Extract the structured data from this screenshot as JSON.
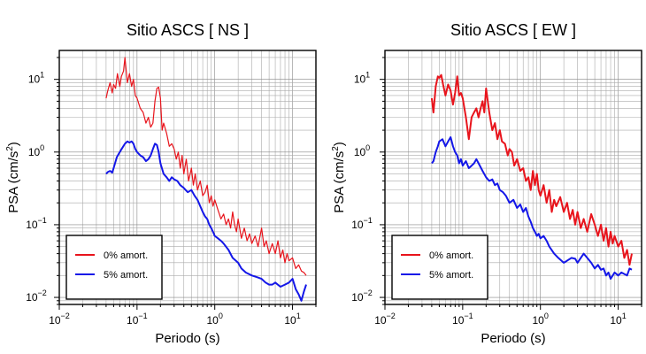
{
  "chart_data": [
    {
      "type": "line",
      "title": "Sitio ASCS [ NS ]",
      "xlabel": "Periodo (s)",
      "ylabel_main": "PSA (cm/s",
      "ylabel_sup": "2",
      "ylabel_end": ")",
      "x_scale": "log",
      "y_scale": "log",
      "xlim": [
        0.01,
        20
      ],
      "ylim": [
        0.008,
        25
      ],
      "grid": true,
      "legend_position": "bottom-left",
      "x_ticks": [
        {
          "value": 0.01,
          "base": "10",
          "exp": "−2"
        },
        {
          "value": 0.1,
          "base": "10",
          "exp": "−1"
        },
        {
          "value": 1,
          "base": "10",
          "exp": "0"
        },
        {
          "value": 10,
          "base": "10",
          "exp": "1"
        }
      ],
      "y_ticks": [
        {
          "value": 0.01,
          "base": "10",
          "exp": "−2"
        },
        {
          "value": 0.1,
          "base": "10",
          "exp": "−1"
        },
        {
          "value": 1,
          "base": "10",
          "exp": "0"
        },
        {
          "value": 10,
          "base": "10",
          "exp": "1"
        }
      ],
      "series": [
        {
          "name": "0% amort.",
          "color": "#e8141c",
          "width": 1.2,
          "x": [
            0.04,
            0.042,
            0.045,
            0.048,
            0.05,
            0.053,
            0.056,
            0.06,
            0.063,
            0.067,
            0.07,
            0.075,
            0.08,
            0.085,
            0.09,
            0.095,
            0.1,
            0.11,
            0.12,
            0.13,
            0.14,
            0.15,
            0.16,
            0.17,
            0.18,
            0.19,
            0.2,
            0.21,
            0.22,
            0.24,
            0.26,
            0.28,
            0.3,
            0.32,
            0.34,
            0.36,
            0.38,
            0.4,
            0.43,
            0.46,
            0.5,
            0.53,
            0.56,
            0.6,
            0.65,
            0.7,
            0.75,
            0.8,
            0.85,
            0.9,
            0.95,
            1.0,
            1.1,
            1.2,
            1.3,
            1.4,
            1.5,
            1.6,
            1.7,
            1.8,
            1.9,
            2.0,
            2.2,
            2.4,
            2.6,
            2.8,
            3.0,
            3.3,
            3.6,
            4.0,
            4.3,
            4.6,
            5.0,
            5.5,
            6.0,
            6.5,
            7.0,
            7.5,
            8.0,
            8.5,
            9.0,
            10.0,
            11.0,
            12.0,
            13.0,
            14.0,
            15.0
          ],
          "y": [
            5.5,
            7.0,
            9.0,
            6.5,
            8.5,
            7.5,
            12.0,
            8.0,
            11.0,
            13.0,
            20.0,
            9.0,
            12.0,
            8.0,
            10.0,
            6.0,
            5.5,
            4.0,
            3.5,
            2.5,
            3.0,
            2.2,
            2.5,
            5.0,
            7.5,
            7.8,
            5.5,
            2.0,
            2.5,
            1.8,
            1.2,
            1.3,
            1.1,
            0.8,
            1.0,
            0.6,
            0.9,
            0.5,
            0.8,
            0.4,
            0.6,
            0.35,
            0.5,
            0.3,
            0.4,
            0.25,
            0.28,
            0.35,
            0.2,
            0.25,
            0.18,
            0.22,
            0.16,
            0.12,
            0.14,
            0.1,
            0.12,
            0.09,
            0.15,
            0.1,
            0.08,
            0.12,
            0.065,
            0.09,
            0.06,
            0.075,
            0.055,
            0.07,
            0.05,
            0.09,
            0.05,
            0.06,
            0.04,
            0.055,
            0.04,
            0.06,
            0.035,
            0.045,
            0.03,
            0.04,
            0.032,
            0.035,
            0.025,
            0.028,
            0.023,
            0.022,
            0.02
          ]
        },
        {
          "name": "5% amort.",
          "color": "#1417e8",
          "width": 2.0,
          "x": [
            0.04,
            0.042,
            0.045,
            0.048,
            0.05,
            0.055,
            0.06,
            0.065,
            0.07,
            0.075,
            0.08,
            0.085,
            0.09,
            0.095,
            0.1,
            0.11,
            0.12,
            0.13,
            0.14,
            0.15,
            0.16,
            0.17,
            0.18,
            0.19,
            0.2,
            0.22,
            0.24,
            0.26,
            0.28,
            0.3,
            0.33,
            0.36,
            0.4,
            0.45,
            0.5,
            0.55,
            0.6,
            0.65,
            0.7,
            0.75,
            0.8,
            0.85,
            0.9,
            0.95,
            1.0,
            1.1,
            1.2,
            1.3,
            1.5,
            1.7,
            2.0,
            2.2,
            2.5,
            3.0,
            3.5,
            4.0,
            4.5,
            5.0,
            5.5,
            6.0,
            7.0,
            8.0,
            9.0,
            10.0,
            11.0,
            12.0,
            13.0,
            14.0,
            15.0
          ],
          "y": [
            0.5,
            0.53,
            0.55,
            0.52,
            0.6,
            0.85,
            1.0,
            1.15,
            1.3,
            1.4,
            1.35,
            1.4,
            1.3,
            1.1,
            1.0,
            0.9,
            0.85,
            0.75,
            0.8,
            0.9,
            1.1,
            1.3,
            1.25,
            1.0,
            0.7,
            0.5,
            0.45,
            0.4,
            0.45,
            0.42,
            0.4,
            0.35,
            0.32,
            0.28,
            0.3,
            0.25,
            0.22,
            0.18,
            0.15,
            0.13,
            0.12,
            0.1,
            0.09,
            0.08,
            0.07,
            0.065,
            0.06,
            0.055,
            0.045,
            0.035,
            0.03,
            0.025,
            0.022,
            0.02,
            0.019,
            0.018,
            0.016,
            0.015,
            0.015,
            0.016,
            0.014,
            0.015,
            0.016,
            0.018,
            0.013,
            0.011,
            0.009,
            0.012,
            0.015
          ]
        }
      ]
    },
    {
      "type": "line",
      "title": "Sitio ASCS [ EW ]",
      "xlabel": "Periodo (s)",
      "ylabel_main": "PSA (cm/s",
      "ylabel_sup": "2",
      "ylabel_end": ")",
      "x_scale": "log",
      "y_scale": "log",
      "xlim": [
        0.01,
        20
      ],
      "ylim": [
        0.008,
        25
      ],
      "grid": true,
      "legend_position": "bottom-left",
      "x_ticks": [
        {
          "value": 0.01,
          "base": "10",
          "exp": "−2"
        },
        {
          "value": 0.1,
          "base": "10",
          "exp": "−1"
        },
        {
          "value": 1,
          "base": "10",
          "exp": "0"
        },
        {
          "value": 10,
          "base": "10",
          "exp": "1"
        }
      ],
      "y_ticks": [
        {
          "value": 0.01,
          "base": "10",
          "exp": "−2"
        },
        {
          "value": 0.1,
          "base": "10",
          "exp": "−1"
        },
        {
          "value": 1,
          "base": "10",
          "exp": "0"
        },
        {
          "value": 10,
          "base": "10",
          "exp": "1"
        }
      ],
      "series": [
        {
          "name": "0% amort.",
          "color": "#e8141c",
          "width": 2.0,
          "x": [
            0.04,
            0.042,
            0.045,
            0.048,
            0.05,
            0.053,
            0.056,
            0.06,
            0.065,
            0.07,
            0.075,
            0.08,
            0.085,
            0.09,
            0.095,
            0.1,
            0.11,
            0.12,
            0.13,
            0.14,
            0.15,
            0.16,
            0.17,
            0.18,
            0.19,
            0.2,
            0.22,
            0.24,
            0.26,
            0.28,
            0.3,
            0.32,
            0.35,
            0.38,
            0.4,
            0.43,
            0.46,
            0.5,
            0.55,
            0.6,
            0.65,
            0.7,
            0.75,
            0.8,
            0.85,
            0.9,
            0.95,
            1.0,
            1.1,
            1.2,
            1.3,
            1.4,
            1.5,
            1.6,
            1.8,
            2.0,
            2.2,
            2.4,
            2.6,
            2.8,
            3.0,
            3.3,
            3.6,
            4.0,
            4.5,
            5.0,
            5.5,
            6.0,
            6.5,
            7.0,
            7.5,
            8.0,
            8.5,
            9.0,
            10.0,
            11.0,
            12.0,
            13.0,
            14.0,
            15.0
          ],
          "y": [
            5.5,
            3.5,
            8.0,
            11.0,
            10.5,
            11.5,
            8.5,
            6.0,
            8.5,
            7.0,
            4.5,
            6.5,
            11.0,
            6.0,
            6.5,
            5.5,
            3.0,
            1.5,
            3.0,
            3.5,
            4.0,
            3.0,
            4.0,
            5.0,
            3.5,
            7.5,
            3.5,
            2.0,
            2.5,
            1.5,
            2.0,
            1.4,
            1.3,
            0.9,
            1.1,
            1.0,
            0.65,
            0.8,
            0.55,
            0.6,
            0.4,
            0.45,
            0.3,
            0.55,
            0.35,
            0.5,
            0.3,
            0.25,
            0.35,
            0.2,
            0.3,
            0.15,
            0.22,
            0.18,
            0.24,
            0.15,
            0.2,
            0.12,
            0.16,
            0.1,
            0.15,
            0.09,
            0.12,
            0.08,
            0.14,
            0.1,
            0.07,
            0.1,
            0.06,
            0.09,
            0.05,
            0.08,
            0.055,
            0.07,
            0.05,
            0.06,
            0.035,
            0.045,
            0.028,
            0.04
          ]
        },
        {
          "name": "5% amort.",
          "color": "#1417e8",
          "width": 2.0,
          "x": [
            0.04,
            0.042,
            0.045,
            0.048,
            0.05,
            0.055,
            0.06,
            0.065,
            0.07,
            0.075,
            0.08,
            0.085,
            0.09,
            0.095,
            0.1,
            0.11,
            0.12,
            0.13,
            0.14,
            0.15,
            0.16,
            0.18,
            0.2,
            0.22,
            0.24,
            0.26,
            0.28,
            0.3,
            0.33,
            0.36,
            0.4,
            0.45,
            0.5,
            0.55,
            0.6,
            0.65,
            0.7,
            0.75,
            0.8,
            0.85,
            0.9,
            0.95,
            1.0,
            1.1,
            1.2,
            1.3,
            1.5,
            1.7,
            2.0,
            2.2,
            2.5,
            2.8,
            3.0,
            3.3,
            3.6,
            4.0,
            4.5,
            5.0,
            5.5,
            6.0,
            6.5,
            7.0,
            7.5,
            8.0,
            8.5,
            9.0,
            10.0,
            11.0,
            12.0,
            13.0,
            14.0,
            15.0
          ],
          "y": [
            0.7,
            0.75,
            1.0,
            1.2,
            1.4,
            1.5,
            1.2,
            1.4,
            1.6,
            1.2,
            1.0,
            0.9,
            0.7,
            0.8,
            0.65,
            0.75,
            0.6,
            0.65,
            0.7,
            0.8,
            0.7,
            0.55,
            0.45,
            0.4,
            0.42,
            0.35,
            0.37,
            0.3,
            0.28,
            0.25,
            0.2,
            0.22,
            0.17,
            0.19,
            0.15,
            0.17,
            0.13,
            0.11,
            0.09,
            0.08,
            0.07,
            0.075,
            0.065,
            0.07,
            0.06,
            0.05,
            0.04,
            0.035,
            0.03,
            0.032,
            0.035,
            0.034,
            0.03,
            0.035,
            0.04,
            0.035,
            0.03,
            0.025,
            0.028,
            0.024,
            0.025,
            0.02,
            0.022,
            0.018,
            0.02,
            0.022,
            0.02,
            0.022,
            0.021,
            0.02,
            0.025,
            0.024
          ]
        }
      ]
    }
  ]
}
